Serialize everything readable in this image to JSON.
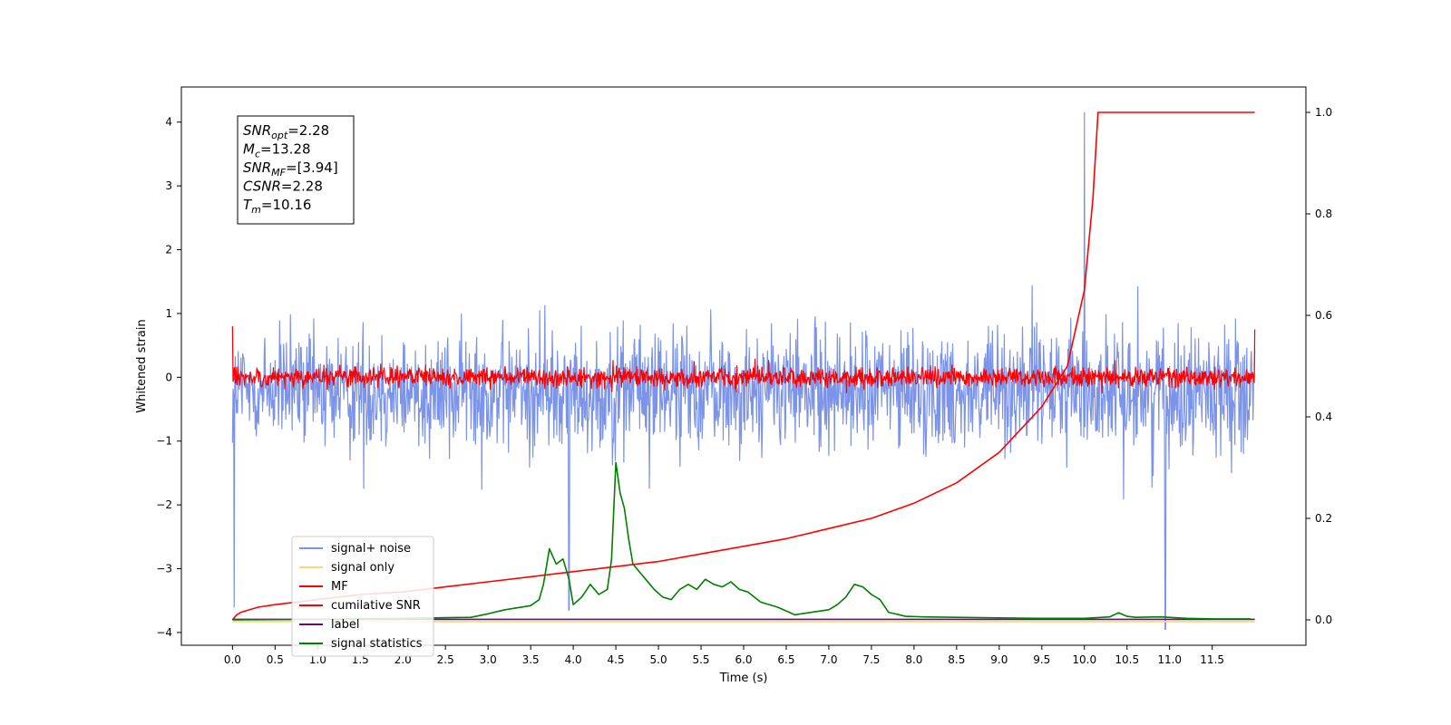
{
  "chart_data": {
    "type": "line",
    "xlabel": "Time (s)",
    "ylabel": "Whitened strain",
    "xlim": [
      -0.6,
      12.6
    ],
    "ylim": [
      -4.2,
      4.55
    ],
    "y2lim": [
      -0.05,
      1.05
    ],
    "x_ticks": [
      0.0,
      0.5,
      1.0,
      1.5,
      2.0,
      2.5,
      3.0,
      3.5,
      4.0,
      4.5,
      5.0,
      5.5,
      6.0,
      6.5,
      7.0,
      7.5,
      8.0,
      8.5,
      9.0,
      9.5,
      10.0,
      10.5,
      11.0,
      11.5
    ],
    "x_tick_labels": [
      "0.0",
      "0.5",
      "1.0",
      "1.5",
      "2.0",
      "2.5",
      "3.0",
      "3.5",
      "4.0",
      "4.5",
      "5.0",
      "5.5",
      "6.0",
      "6.5",
      "7.0",
      "7.5",
      "8.0",
      "8.5",
      "9.0",
      "9.5",
      "10.0",
      "10.5",
      "11.0",
      "11.5"
    ],
    "y_ticks": [
      -4,
      -3,
      -2,
      -1,
      0,
      1,
      2,
      3,
      4
    ],
    "y_tick_labels": [
      "−4",
      "−3",
      "−2",
      "−1",
      "0",
      "1",
      "2",
      "3",
      "4"
    ],
    "y2_ticks": [
      0.0,
      0.2,
      0.4,
      0.6,
      0.8,
      1.0
    ],
    "y2_tick_labels": [
      "0.0",
      "0.2",
      "0.4",
      "0.6",
      "0.8",
      "1.0"
    ],
    "annotation": [
      {
        "base": "SNR",
        "sub": "opt",
        "rest": "=2.28"
      },
      {
        "base": "M",
        "sub": "c",
        "rest": "=13.28"
      },
      {
        "base": "SNR",
        "sub": "MF",
        "rest": "=[3.94]"
      },
      {
        "base": "CSNR",
        "sub": "",
        "rest": "=2.28"
      },
      {
        "base": "T",
        "sub": "m",
        "rest": "=10.16"
      }
    ],
    "legend_position": "lower-left",
    "series": [
      {
        "name": "signal+ noise",
        "color": "#7b93e8",
        "axis": "left",
        "style": "noise",
        "center": -0.2,
        "amplitude": 1.35,
        "x_range": [
          0.0,
          12.0
        ],
        "spikes": [
          [
            10.0,
            4.15
          ],
          [
            10.95,
            -3.95
          ],
          [
            0.02,
            -3.6
          ],
          [
            3.95,
            -3.65
          ]
        ]
      },
      {
        "name": "signal only",
        "color": "#fed37a",
        "axis": "left",
        "style": "flat",
        "x": [
          0.0,
          12.0
        ],
        "values": [
          -3.83,
          -3.83
        ]
      },
      {
        "name": "MF",
        "color": "#ff0000",
        "axis": "left",
        "style": "noise",
        "center": 0.0,
        "amplitude": 0.22,
        "x_range": [
          0.0,
          12.0
        ],
        "spikes": [
          [
            0.0,
            0.8
          ],
          [
            12.0,
            0.75
          ]
        ]
      },
      {
        "name": "cumilative SNR",
        "color": "#ff0000",
        "axis": "right",
        "style": "line",
        "x": [
          0.0,
          0.05,
          0.1,
          0.3,
          0.5,
          1.0,
          1.5,
          2.0,
          2.5,
          3.0,
          3.5,
          4.0,
          4.5,
          5.0,
          5.5,
          6.0,
          6.5,
          7.0,
          7.5,
          8.0,
          8.5,
          9.0,
          9.5,
          9.8,
          10.0,
          10.1,
          10.16,
          12.0
        ],
        "values": [
          0.0,
          0.01,
          0.015,
          0.025,
          0.03,
          0.04,
          0.05,
          0.055,
          0.065,
          0.075,
          0.085,
          0.095,
          0.105,
          0.115,
          0.13,
          0.145,
          0.16,
          0.18,
          0.2,
          0.23,
          0.27,
          0.33,
          0.42,
          0.5,
          0.65,
          0.83,
          1.0,
          1.0
        ]
      },
      {
        "name": "label",
        "color": "#6a0a70",
        "axis": "right",
        "style": "line",
        "x": [
          0.0,
          12.0
        ],
        "values": [
          0.001,
          0.001
        ]
      },
      {
        "name": "signal statistics",
        "color": "#007f00",
        "axis": "right",
        "style": "line",
        "x": [
          0.0,
          1.0,
          2.0,
          2.8,
          3.0,
          3.2,
          3.5,
          3.6,
          3.65,
          3.72,
          3.8,
          3.88,
          3.95,
          4.0,
          4.1,
          4.2,
          4.3,
          4.4,
          4.45,
          4.5,
          4.55,
          4.6,
          4.65,
          4.7,
          4.75,
          4.85,
          4.95,
          5.05,
          5.15,
          5.25,
          5.35,
          5.45,
          5.55,
          5.65,
          5.75,
          5.85,
          5.95,
          6.05,
          6.2,
          6.4,
          6.6,
          6.8,
          7.0,
          7.1,
          7.2,
          7.3,
          7.4,
          7.5,
          7.6,
          7.7,
          7.9,
          8.1,
          8.5,
          9.0,
          9.5,
          10.0,
          10.3,
          10.4,
          10.5,
          10.6,
          10.9,
          11.2,
          11.5,
          11.95
        ],
        "values": [
          0.0,
          0.001,
          0.003,
          0.005,
          0.012,
          0.02,
          0.028,
          0.04,
          0.07,
          0.14,
          0.11,
          0.12,
          0.08,
          0.03,
          0.045,
          0.07,
          0.05,
          0.06,
          0.12,
          0.31,
          0.25,
          0.22,
          0.16,
          0.11,
          0.1,
          0.08,
          0.06,
          0.045,
          0.04,
          0.06,
          0.07,
          0.06,
          0.08,
          0.07,
          0.065,
          0.075,
          0.06,
          0.055,
          0.035,
          0.025,
          0.01,
          0.015,
          0.02,
          0.03,
          0.045,
          0.07,
          0.065,
          0.05,
          0.04,
          0.015,
          0.007,
          0.006,
          0.005,
          0.004,
          0.003,
          0.003,
          0.006,
          0.014,
          0.007,
          0.005,
          0.006,
          0.003,
          0.002,
          0.002
        ]
      }
    ]
  }
}
